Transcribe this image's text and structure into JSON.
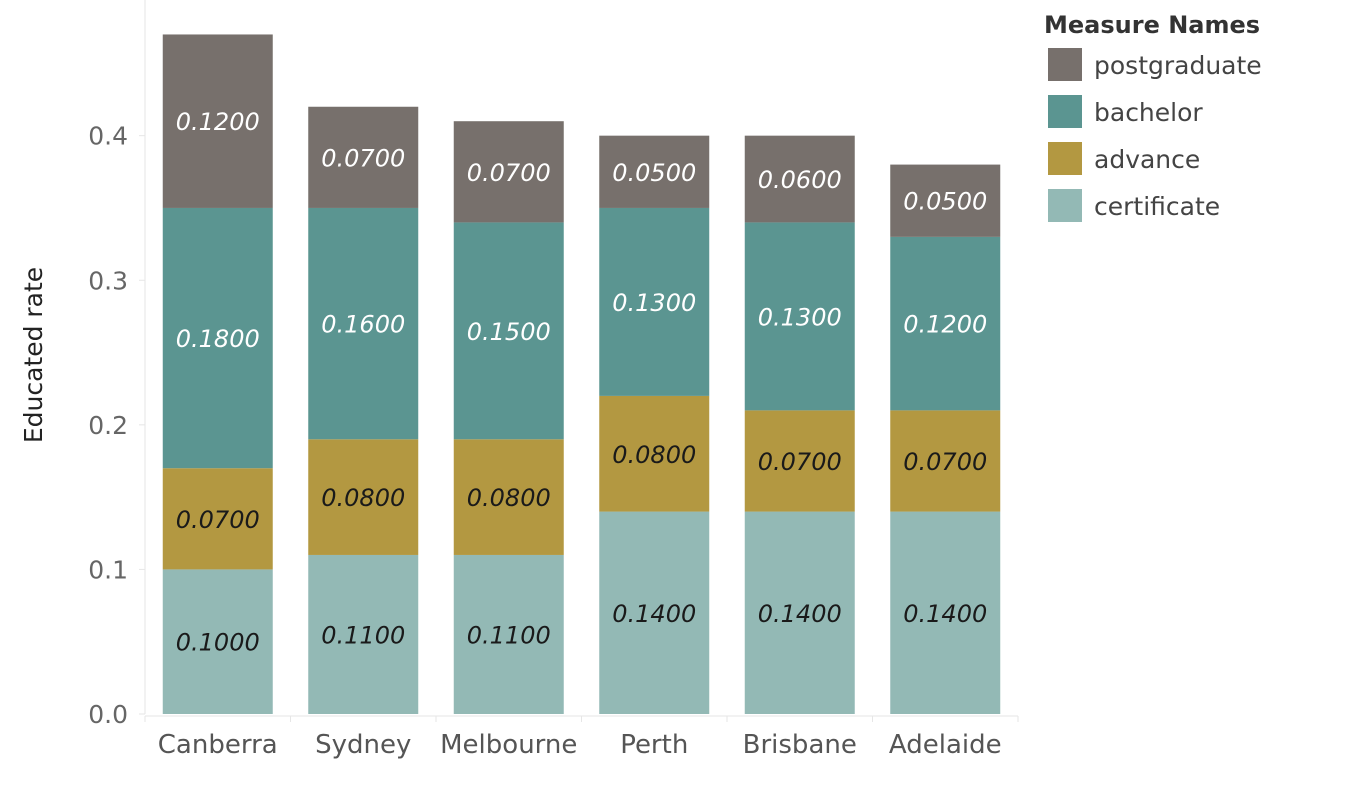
{
  "chart_data": {
    "type": "bar",
    "stacked": true,
    "categories": [
      "Canberra",
      "Sydney",
      "Melbourne",
      "Perth",
      "Brisbane",
      "Adelaide"
    ],
    "series": [
      {
        "name": "certificate",
        "color": "#93b9b5",
        "values": [
          0.1,
          0.11,
          0.11,
          0.14,
          0.14,
          0.14
        ],
        "labels": [
          "0.1000",
          "0.1100",
          "0.1100",
          "0.1400",
          "0.1400",
          "0.1400"
        ],
        "label_color": "#1a1a1a"
      },
      {
        "name": "advance",
        "color": "#b39841",
        "values": [
          0.07,
          0.08,
          0.08,
          0.08,
          0.07,
          0.07
        ],
        "labels": [
          "0.0700",
          "0.0800",
          "0.0800",
          "0.0800",
          "0.0700",
          "0.0700"
        ],
        "label_color": "#1a1a1a"
      },
      {
        "name": "bachelor",
        "color": "#5b9591",
        "values": [
          0.18,
          0.16,
          0.15,
          0.13,
          0.13,
          0.12
        ],
        "labels": [
          "0.1800",
          "0.1600",
          "0.1500",
          "0.1300",
          "0.1300",
          "0.1200"
        ],
        "label_color": "#ffffff"
      },
      {
        "name": "postgraduate",
        "color": "#77706c",
        "values": [
          0.12,
          0.07,
          0.07,
          0.05,
          0.06,
          0.05
        ],
        "labels": [
          "0.1200",
          "0.0700",
          "0.0700",
          "0.0500",
          "0.0600",
          "0.0500"
        ],
        "label_color": "#ffffff"
      }
    ],
    "ylabel": "Educated rate",
    "xlabel": "",
    "ylim": [
      0,
      0.48
    ],
    "yticks": [
      "0.0",
      "0.1",
      "0.2",
      "0.3",
      "0.4"
    ],
    "grid": false,
    "legend": {
      "title": "Measure Names",
      "position": "top-right",
      "order": [
        "postgraduate",
        "bachelor",
        "advance",
        "certificate"
      ]
    }
  }
}
